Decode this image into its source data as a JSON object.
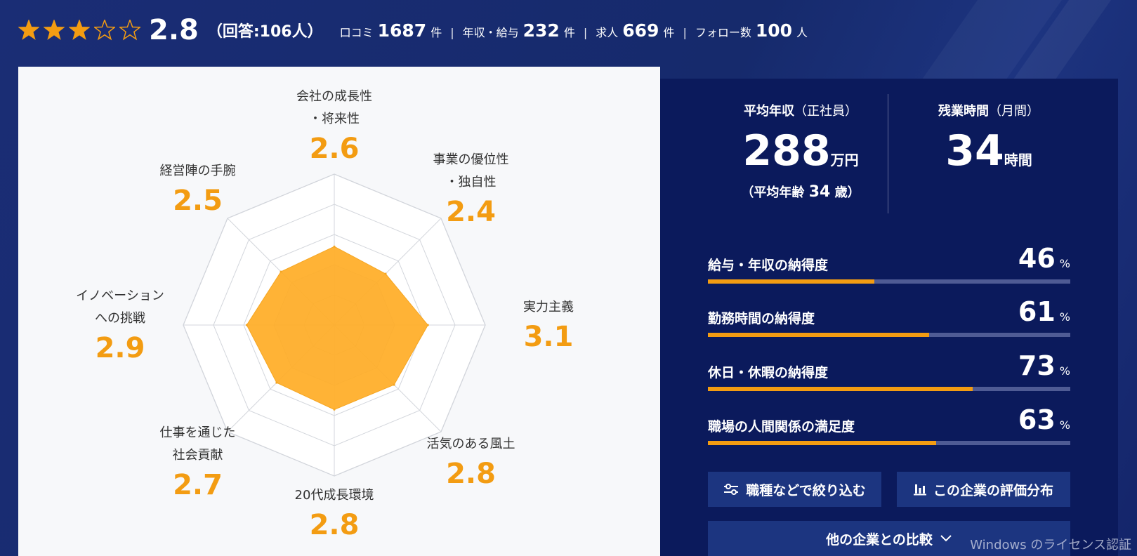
{
  "header": {
    "rating": 2.8,
    "stars_filled": 3,
    "stars_total": 5,
    "score": "2.8",
    "respondents": "（回答:106人）",
    "stats": [
      {
        "label": "口コミ",
        "value": "1687",
        "unit": "件"
      },
      {
        "label": "年収・給与",
        "value": "232",
        "unit": "件"
      },
      {
        "label": "求人",
        "value": "669",
        "unit": "件"
      },
      {
        "label": "フォロー数",
        "value": "100",
        "unit": "人"
      }
    ],
    "separator": "|"
  },
  "radar": {
    "max": 5,
    "items": [
      {
        "label_lines": [
          "会社の成長性",
          "・将来性"
        ],
        "value": 2.6
      },
      {
        "label_lines": [
          "事業の優位性",
          "・独自性"
        ],
        "value": 2.4
      },
      {
        "label_lines": [
          "実力主義"
        ],
        "value": 3.1
      },
      {
        "label_lines": [
          "活気のある風土"
        ],
        "value": 2.8
      },
      {
        "label_lines": [
          "20代成長環境"
        ],
        "value": 2.8
      },
      {
        "label_lines": [
          "仕事を通じた",
          "社会貢献"
        ],
        "value": 2.7
      },
      {
        "label_lines": [
          "イノベーション",
          "への挑戦"
        ],
        "value": 2.9
      },
      {
        "label_lines": [
          "経営陣の手腕"
        ],
        "value": 2.5
      }
    ]
  },
  "salary": {
    "title": "平均年収",
    "qualifier": "（正社員）",
    "value": "288",
    "unit": "万円",
    "age_prefix": "（平均年齢",
    "age": "34",
    "age_suffix": "歳）"
  },
  "overtime": {
    "title": "残業時間",
    "qualifier": "（月間）",
    "value": "34",
    "unit": "時間"
  },
  "metrics": [
    {
      "label": "給与・年収の納得度",
      "value": 46,
      "unit": "%"
    },
    {
      "label": "勤務時間の納得度",
      "value": 61,
      "unit": "%"
    },
    {
      "label": "休日・休暇の納得度",
      "value": 73,
      "unit": "%"
    },
    {
      "label": "職場の人間関係の満足度",
      "value": 63,
      "unit": "%"
    }
  ],
  "buttons": {
    "filter": "職種などで絞り込む",
    "distribution": "この企業の評価分布",
    "compare": "他の企業との比較"
  },
  "icons": {
    "star_filled": "star-filled-icon",
    "star_empty": "star-outline-icon",
    "filter": "sliders-icon",
    "distribution": "bar-chart-icon",
    "compare": "chevron-down-icon"
  },
  "colors": {
    "accent": "#f39c12",
    "radar_fill": "#ffad25",
    "panel_dark": "#0b1a5c",
    "button": "#1c3580"
  },
  "watermark": "Windows のライセンス認証"
}
